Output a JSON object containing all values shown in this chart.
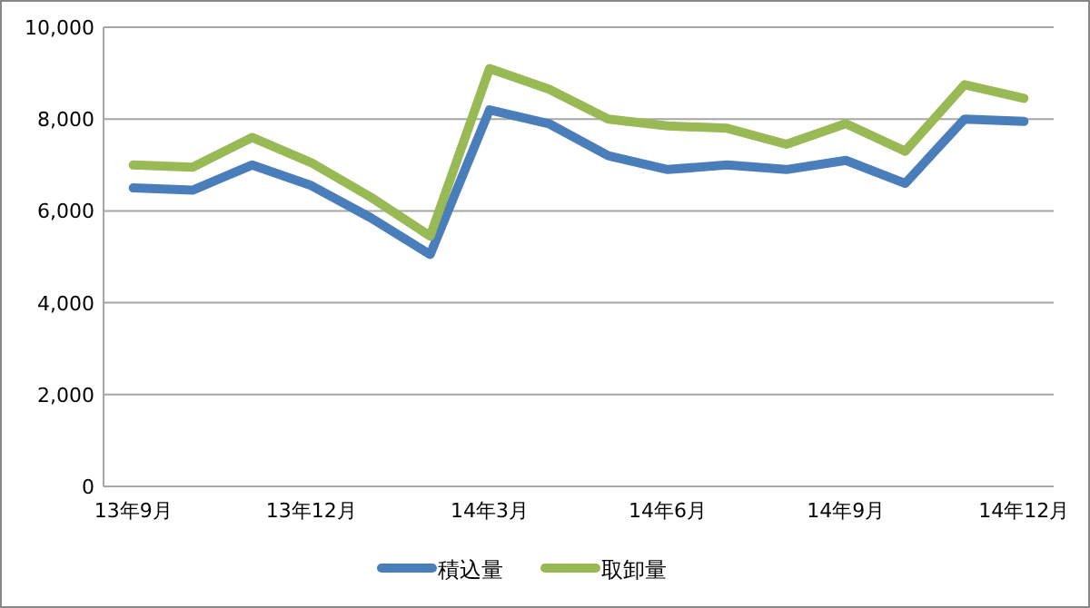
{
  "chart_data": {
    "type": "line",
    "categories": [
      "13年9月",
      null,
      null,
      "13年12月",
      null,
      null,
      "14年3月",
      null,
      null,
      "14年6月",
      null,
      null,
      "14年9月",
      null,
      null,
      "14年12月"
    ],
    "series": [
      {
        "name": "積込量",
        "color": "#4a7ebb",
        "values": [
          6500,
          6450,
          7000,
          6550,
          5850,
          5050,
          8200,
          7900,
          7200,
          6900,
          7000,
          6900,
          7100,
          6600,
          8000,
          7950
        ]
      },
      {
        "name": "取卸量",
        "color": "#98b954",
        "values": [
          7000,
          6950,
          7600,
          7050,
          6300,
          5450,
          9100,
          8650,
          8000,
          7850,
          7800,
          7450,
          7900,
          7300,
          8750,
          8450
        ]
      }
    ],
    "ylim": [
      0,
      10000
    ],
    "yticks": [
      0,
      {
        "value": 2000,
        "label": "2,000"
      },
      {
        "value": 4000,
        "label": "4,000"
      },
      {
        "value": 6000,
        "label": "6,000"
      },
      {
        "value": 8000,
        "label": "8,000"
      },
      {
        "value": 10000,
        "label": "10,000"
      }
    ],
    "grid": "y",
    "legend": "bottom",
    "marker": "none",
    "line_style": "solid"
  }
}
